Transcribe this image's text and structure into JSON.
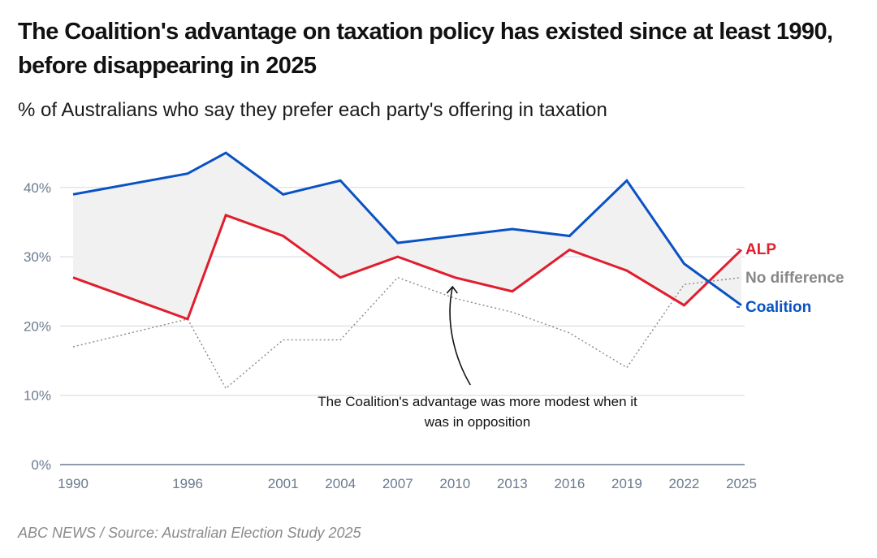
{
  "header": {
    "title": "The Coalition's advantage on taxation policy has existed since at least 1990, before disappearing in 2025",
    "subtitle": "% of Australians who say they prefer each party's offering in taxation"
  },
  "footer": {
    "source": "ABC NEWS / Source: Australian Election Study 2025"
  },
  "colors": {
    "coalition": "#0a52c4",
    "alp": "#e11d2e",
    "no_difference": "#888888",
    "gap_fill": "#f1f1f1",
    "grid": "#d7dde6",
    "axis": "#6b7a90"
  },
  "chart_data": {
    "type": "line",
    "title": "The Coalition's advantage on taxation policy has existed since at least 1990, before disappearing in 2025",
    "subtitle": "% of Australians who say they prefer each party's offering in taxation",
    "xlabel": "",
    "ylabel": "",
    "x": [
      1990,
      1996,
      1998,
      2001,
      2004,
      2007,
      2010,
      2013,
      2016,
      2019,
      2022,
      2025
    ],
    "x_tick_labels": [
      "1990",
      "1996",
      "2001",
      "2004",
      "2007",
      "2010",
      "2013",
      "2016",
      "2019",
      "2022",
      "2025"
    ],
    "x_tick_values": [
      1990,
      1996,
      2001,
      2004,
      2007,
      2010,
      2013,
      2016,
      2019,
      2022,
      2025
    ],
    "xlim": [
      1990,
      2025
    ],
    "ylim": [
      0,
      45
    ],
    "y_ticks": [
      0,
      10,
      20,
      30,
      40
    ],
    "y_tick_labels": [
      "0%",
      "10%",
      "20%",
      "30%",
      "40%"
    ],
    "grid": true,
    "legend": "right (direct labels at line ends)",
    "series": [
      {
        "name": "Coalition",
        "key": "coalition",
        "style": "solid",
        "values": [
          39,
          42,
          45,
          39,
          41,
          32,
          33,
          34,
          33,
          41,
          29,
          23
        ]
      },
      {
        "name": "ALP",
        "key": "alp",
        "style": "solid",
        "values": [
          27,
          21,
          36,
          33,
          27,
          30,
          27,
          25,
          31,
          28,
          23,
          31
        ]
      },
      {
        "name": "No difference",
        "key": "no_difference",
        "style": "dotted",
        "values": [
          17,
          21,
          11,
          18,
          18,
          27,
          24,
          22,
          19,
          14,
          26,
          27
        ]
      }
    ],
    "shaded_area": "gap between Coalition and ALP",
    "annotations": [
      {
        "text_lines": [
          "The Coalition's advantage was more modest when it",
          "was in opposition"
        ],
        "points_to": {
          "x": 2010,
          "series": "ALP"
        }
      }
    ]
  }
}
